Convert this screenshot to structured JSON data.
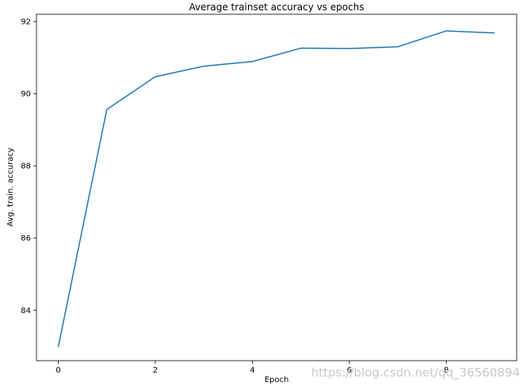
{
  "chart_data": {
    "type": "line",
    "title": "Average trainset accuracy vs epochs",
    "xlabel": "Epoch",
    "ylabel": "Avg. train. accuracy",
    "x": [
      0,
      1,
      2,
      3,
      4,
      5,
      6,
      7,
      8,
      9
    ],
    "series": [
      {
        "values": [
          82.98,
          89.56,
          90.47,
          90.76,
          90.89,
          91.26,
          91.25,
          91.3,
          91.74,
          91.68
        ]
      }
    ],
    "xticks": [
      0,
      2,
      4,
      6,
      8
    ],
    "yticks": [
      84,
      86,
      88,
      90,
      92
    ],
    "xlim": [
      -0.45,
      9.45
    ],
    "ylim": [
      82.6,
      92.2
    ],
    "grid": false,
    "line_color": "#1f77b4"
  },
  "watermark": "https://blog.csdn.net/qq_36560894"
}
